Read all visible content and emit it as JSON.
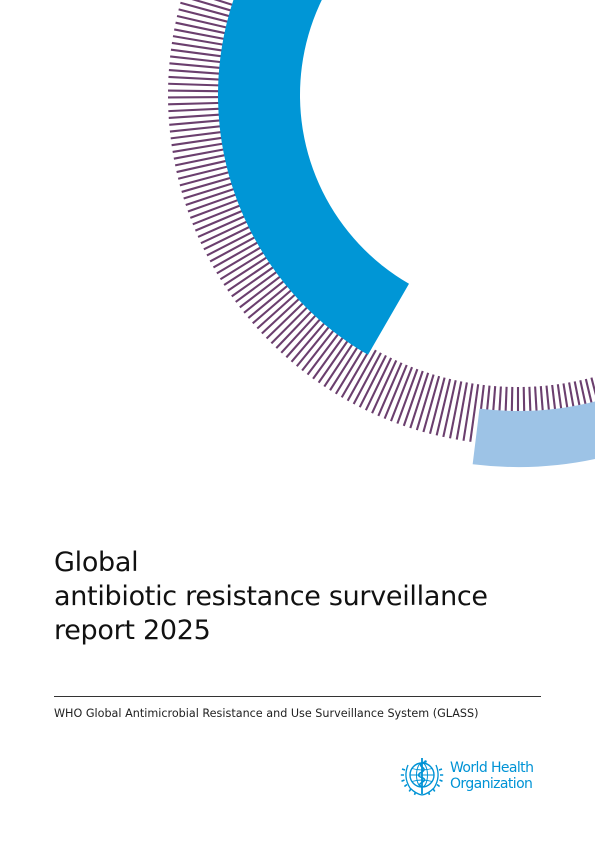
{
  "document": {
    "title_lines": [
      "Global",
      "antibiotic resistance surveillance",
      "report 2025"
    ],
    "subtitle": "WHO Global Antimicrobial Resistance and Use Surveillance System (GLASS)"
  },
  "logo": {
    "name_lines": [
      "World Health",
      "Organization"
    ],
    "emblem_icon": "who-emblem-icon"
  },
  "colors": {
    "stripe_purple": "#6b3f6e",
    "arc_blue": "#0096d6",
    "light_blue": "#9dc3e6",
    "logo_blue": "#0093d5"
  }
}
